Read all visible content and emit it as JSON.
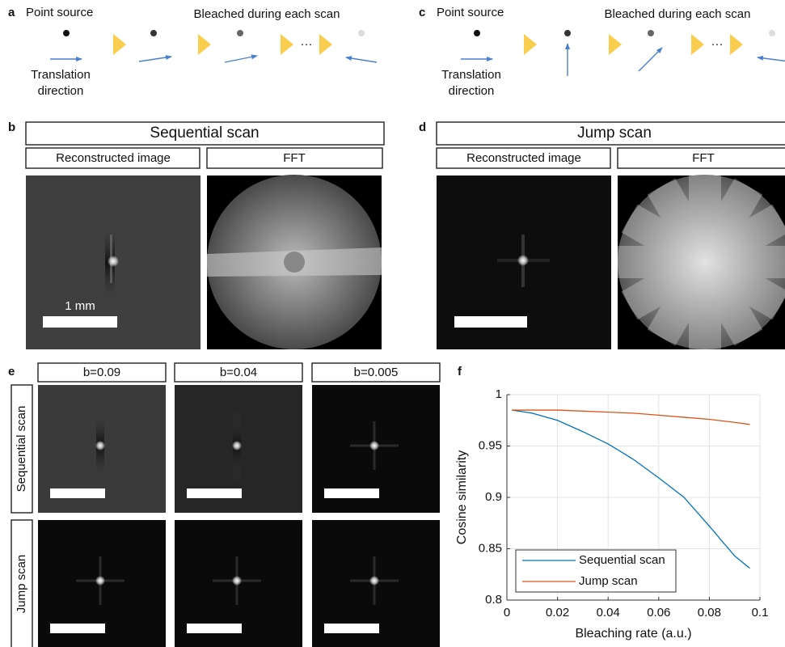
{
  "figure": {
    "panel_a": {
      "letter": "a",
      "source_label": "Point source",
      "bleach_label": "Bleached during each scan",
      "ellipsis": "···",
      "direction_label": [
        "Translation",
        "direction"
      ]
    },
    "panel_b": {
      "letter": "b",
      "title": "Sequential scan",
      "image_label": "Reconstructed image",
      "fft_label": "FFT",
      "scale_label": "1 mm"
    },
    "panel_c": {
      "letter": "c",
      "source_label": "Point source",
      "bleach_label": "Bleached during each scan",
      "ellipsis": "···",
      "direction_label": [
        "Translation",
        "direction"
      ]
    },
    "panel_d": {
      "letter": "d",
      "title": "Jump scan",
      "image_label": "Reconstructed image",
      "fft_label": "FFT"
    },
    "panel_e": {
      "letter": "e",
      "columns": [
        "b=0.09",
        "b=0.04",
        "b=0.005"
      ],
      "rows": [
        "Sequential scan",
        "Jump scan"
      ]
    },
    "panel_f": {
      "letter": "f"
    }
  },
  "chart_data": {
    "type": "line",
    "xlabel": "Bleaching rate (a.u.)",
    "ylabel": "Cosine similarity",
    "x": [
      0.002,
      0.01,
      0.02,
      0.03,
      0.04,
      0.05,
      0.06,
      0.07,
      0.08,
      0.09,
      0.096
    ],
    "series": [
      {
        "name": "Sequential scan",
        "color": "#0072bd",
        "values": [
          0.985,
          0.982,
          0.975,
          0.964,
          0.952,
          0.937,
          0.919,
          0.9,
          0.872,
          0.843,
          0.831
        ]
      },
      {
        "name": "Jump scan",
        "color": "#d95319",
        "values": [
          0.985,
          0.985,
          0.985,
          0.984,
          0.983,
          0.982,
          0.98,
          0.978,
          0.976,
          0.973,
          0.971
        ]
      }
    ],
    "xlim": [
      0,
      0.1
    ],
    "ylim": [
      0.8,
      1
    ],
    "xticks": [
      0,
      0.02,
      0.04,
      0.06,
      0.08,
      0.1
    ],
    "yticks": [
      0.8,
      0.85,
      0.9,
      0.95,
      1
    ],
    "grid": true,
    "legend": "lower left"
  }
}
